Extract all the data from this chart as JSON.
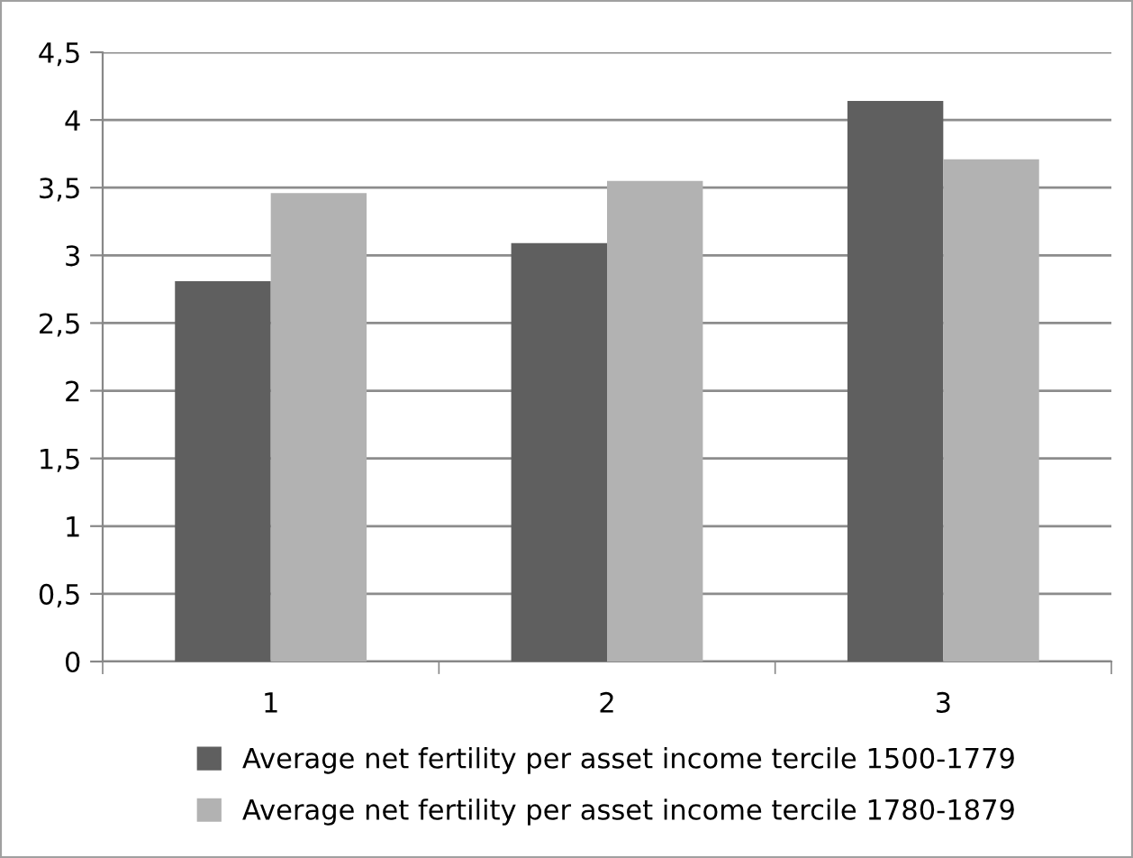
{
  "chart_data": {
    "type": "bar",
    "categories": [
      "1",
      "2",
      "3"
    ],
    "series": [
      {
        "name": "Average net fertility per asset income tercile 1500-1779",
        "color": "#5f5f5f",
        "values": [
          2.81,
          3.09,
          4.14
        ]
      },
      {
        "name": "Average net fertility per asset income tercile 1780-1879",
        "color": "#b2b2b2",
        "values": [
          3.46,
          3.55,
          3.71
        ]
      }
    ],
    "ylim": [
      0,
      4.5
    ],
    "yticks": [
      0,
      {
        "value": 0.5,
        "label": "0,5"
      },
      1,
      {
        "value": 1.5,
        "label": "1,5"
      },
      2,
      {
        "value": 2.5,
        "label": "2,5"
      },
      3,
      {
        "value": 3.5,
        "label": "3,5"
      },
      4,
      {
        "value": 4.5,
        "label": "4,5"
      }
    ],
    "grid": "y",
    "legend": "bottom"
  }
}
